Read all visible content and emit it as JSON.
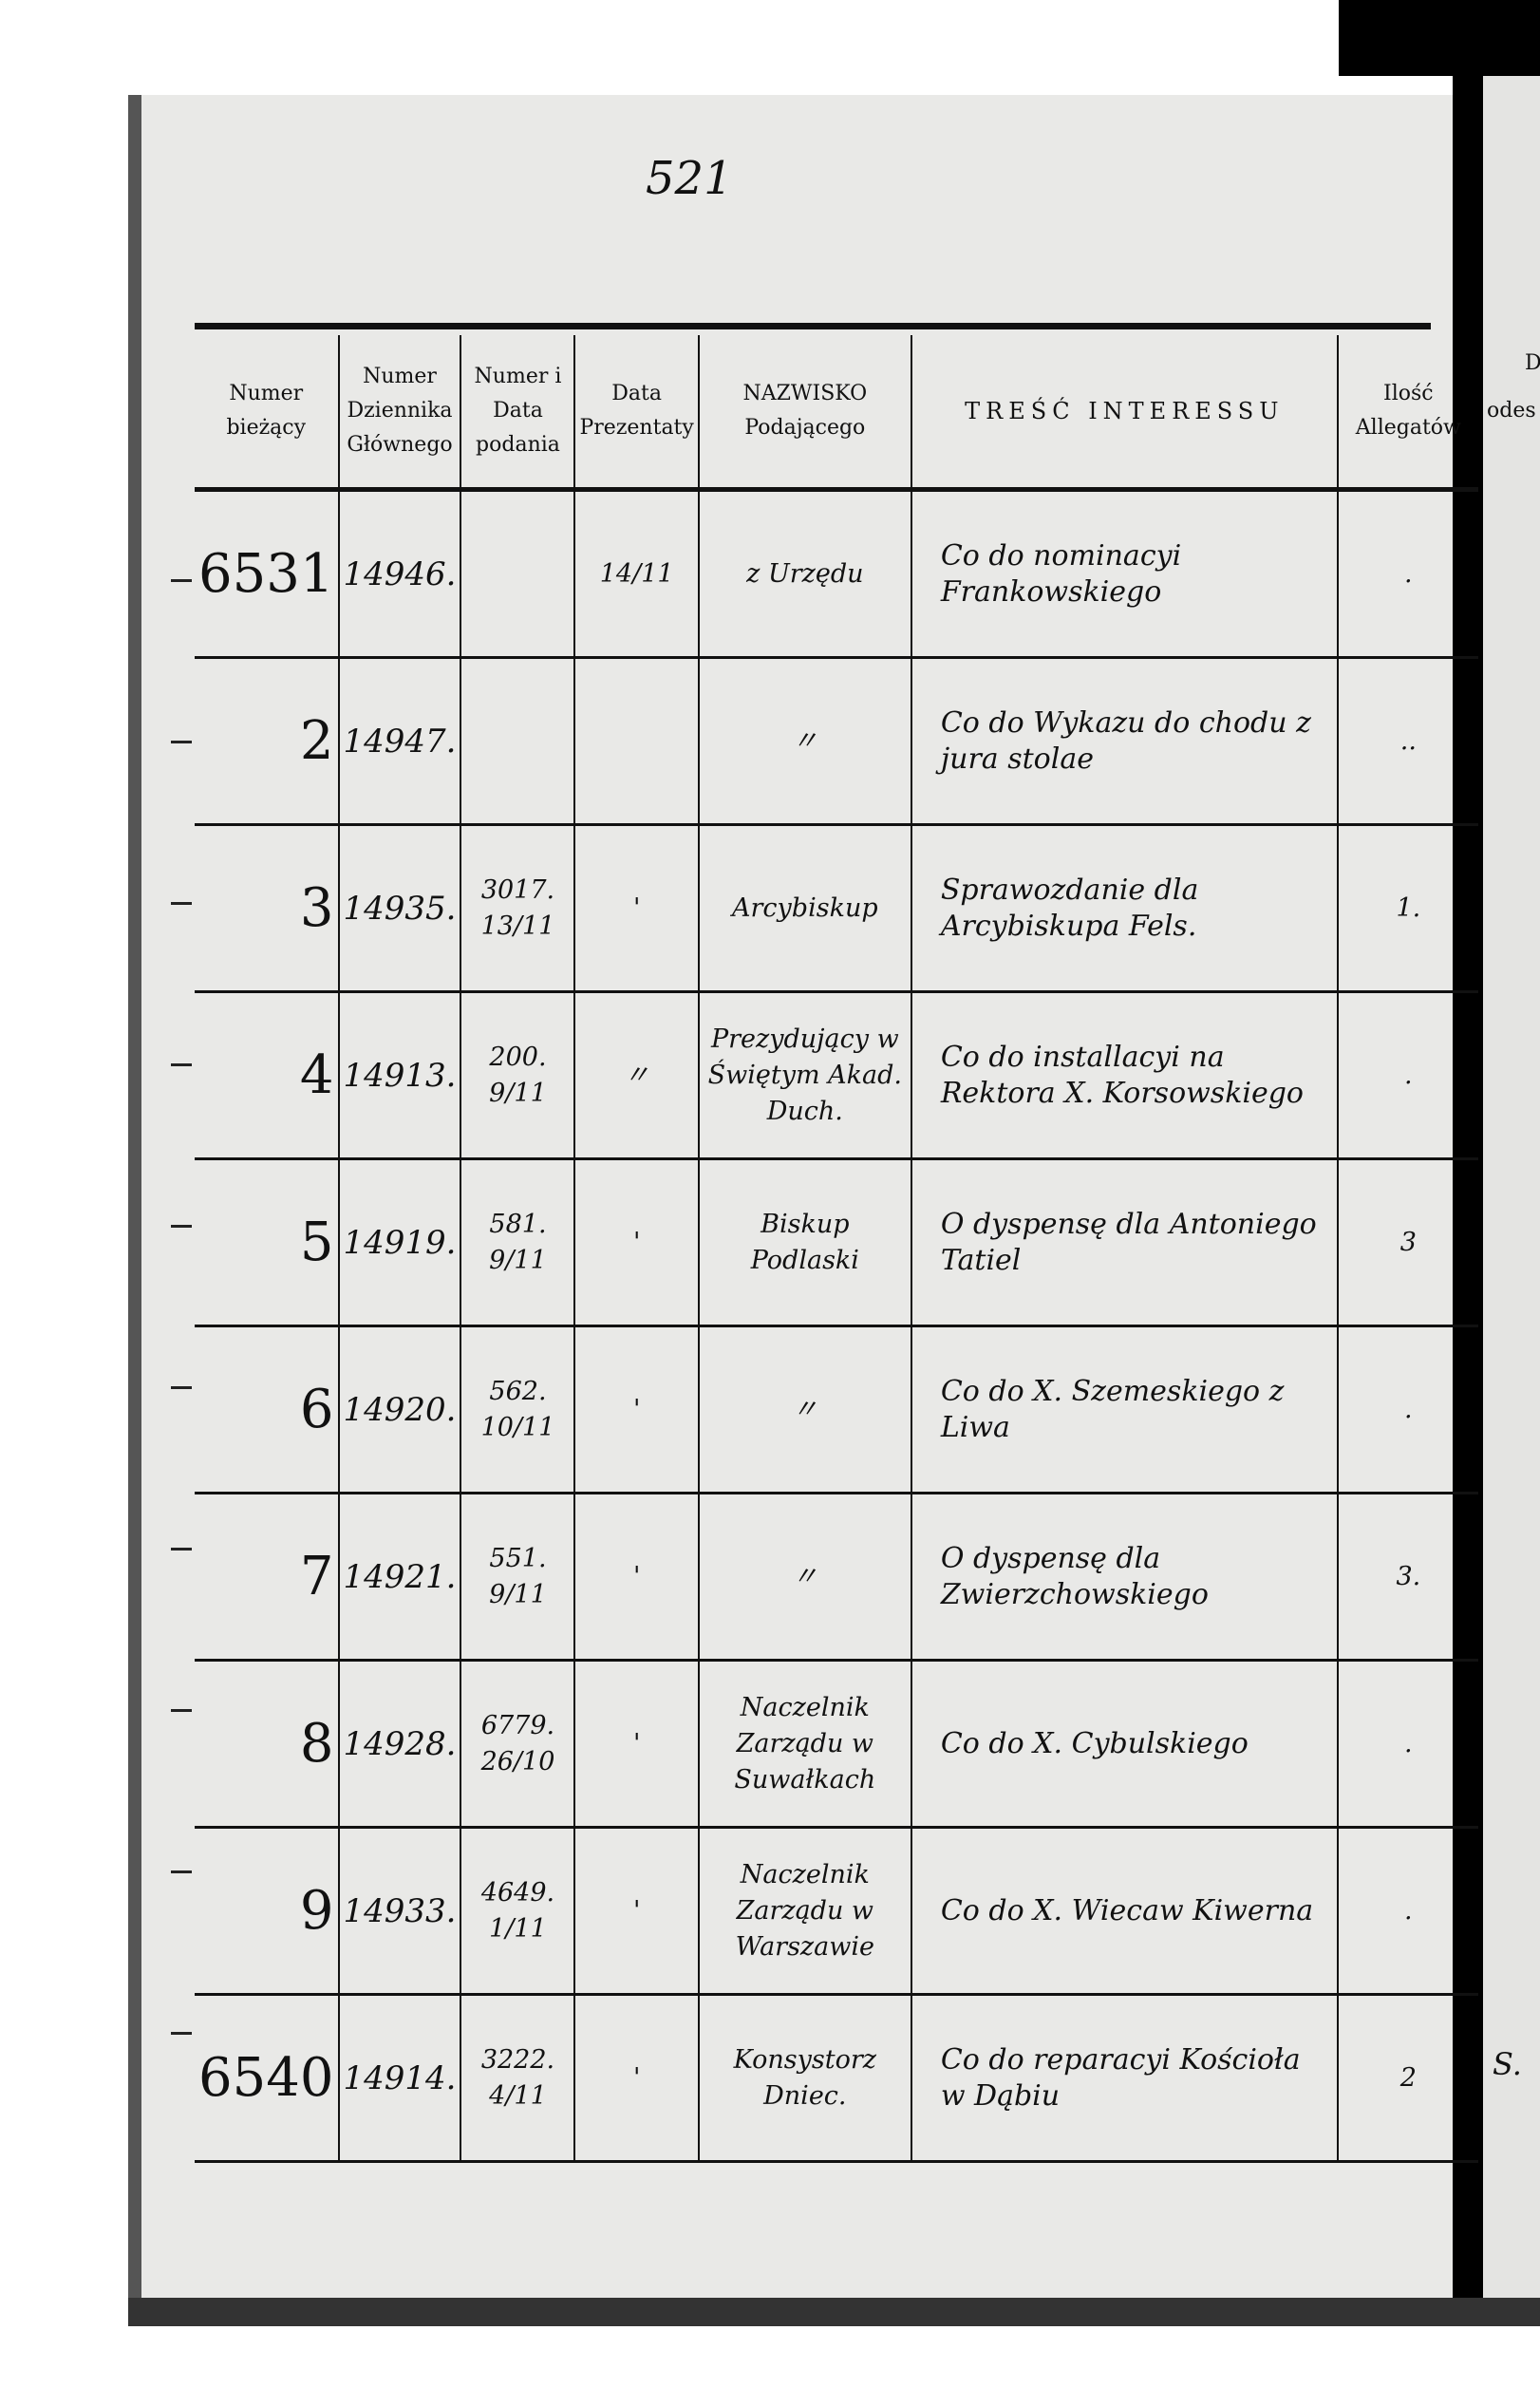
{
  "page_number": "521",
  "headers": [
    "Numer bieżący",
    "Numer Dziennika Głównego",
    "Numer i Data podania",
    "Data Prezentaty",
    "NAZWISKO Podającego",
    "TREŚĆ INTERESSU",
    "Ilość Allegatów"
  ],
  "next_page_fragments": [
    "D",
    "odes",
    "S."
  ],
  "rows": [
    {
      "nr": "6531",
      "dziennik": "14946.",
      "numer_data": "",
      "prezentata": "14/11",
      "nazwisko": "z Urzędu",
      "tresc": "Co do nominacyi Frankowskiego",
      "allegaty": "."
    },
    {
      "nr": "2",
      "dziennik": "14947.",
      "numer_data": "",
      "prezentata": "",
      "nazwisko": "〃",
      "tresc": "Co do Wykazu do chodu z jura stolae",
      "allegaty": ".."
    },
    {
      "nr": "3",
      "dziennik": "14935.",
      "numer_data": "3017. 13/11",
      "prezentata": "'",
      "nazwisko": "Arcybiskup",
      "tresc": "Sprawozdanie dla Arcybiskupa Fels.",
      "allegaty": "1."
    },
    {
      "nr": "4",
      "dziennik": "14913.",
      "numer_data": "200. 9/11",
      "prezentata": "〃",
      "nazwisko": "Prezydujący w Świętym Akad. Duch.",
      "tresc": "Co do installacyi na Rektora X. Korsowskiego",
      "allegaty": "."
    },
    {
      "nr": "5",
      "dziennik": "14919.",
      "numer_data": "581. 9/11",
      "prezentata": "'",
      "nazwisko": "Biskup Podlaski",
      "tresc": "O dyspensę dla Antoniego Tatiel",
      "allegaty": "3"
    },
    {
      "nr": "6",
      "dziennik": "14920.",
      "numer_data": "562. 10/11",
      "prezentata": "'",
      "nazwisko": "〃",
      "tresc": "Co do X. Szemeskiego z Liwa",
      "allegaty": "."
    },
    {
      "nr": "7",
      "dziennik": "14921.",
      "numer_data": "551. 9/11",
      "prezentata": "'",
      "nazwisko": "〃",
      "tresc": "O dyspensę dla Zwierzchowskiego",
      "allegaty": "3."
    },
    {
      "nr": "8",
      "dziennik": "14928.",
      "numer_data": "6779. 26/10",
      "prezentata": "'",
      "nazwisko": "Naczelnik Zarządu w Suwałkach",
      "tresc": "Co do X. Cybulskiego",
      "allegaty": "."
    },
    {
      "nr": "9",
      "dziennik": "14933.",
      "numer_data": "4649. 1/11",
      "prezentata": "'",
      "nazwisko": "Naczelnik Zarządu w Warszawie",
      "tresc": "Co do X. Wiecaw Kiwerna",
      "allegaty": "."
    },
    {
      "nr": "6540",
      "dziennik": "14914.",
      "numer_data": "3222. 4/11",
      "prezentata": "'",
      "nazwisko": "Konsystorz Dniec.",
      "tresc": "Co do reparacyi Kościoła w Dąbiu",
      "allegaty": "2"
    }
  ]
}
